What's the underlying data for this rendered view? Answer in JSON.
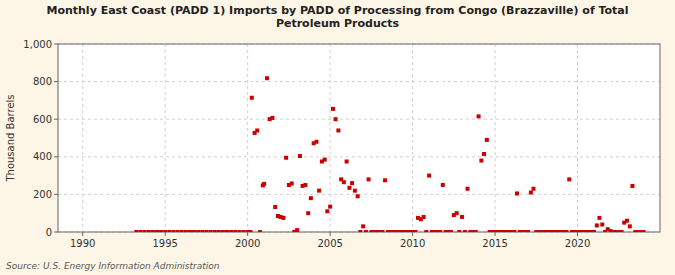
{
  "chart_data": {
    "type": "scatter",
    "title": "Monthly East Coast (PADD 1) Imports by PADD of Processing from Congo (Brazzaville) of Total\nPetroleum Products",
    "ylabel": "Thousand Barrels",
    "source": "Source: U.S. Energy Information Administration",
    "color": "#cc0000",
    "marker": "square",
    "grid": true,
    "xlim": [
      1988.5,
      2025.0
    ],
    "ylim": [
      0,
      1000
    ],
    "xticks": [
      1990,
      1995,
      2000,
      2005,
      2010,
      2015,
      2020
    ],
    "yticks": [
      0,
      200,
      400,
      600,
      800,
      {
        "value": 1000,
        "label": "1,000"
      }
    ],
    "x": [
      1993.25,
      1993.5,
      1993.75,
      1994.0,
      1994.25,
      1994.5,
      1994.75,
      1995.0,
      1995.25,
      1995.5,
      1995.75,
      1996.0,
      1996.25,
      1996.5,
      1996.75,
      1997.0,
      1997.25,
      1997.5,
      1997.75,
      1998.0,
      1998.25,
      1998.5,
      1998.75,
      1999.0,
      1999.25,
      1999.5,
      1999.75,
      2000.0,
      2000.08,
      2000.17,
      2000.25,
      2000.42,
      2000.58,
      2000.75,
      2000.92,
      2001.0,
      2001.17,
      2001.33,
      2001.5,
      2001.67,
      2001.83,
      2002.0,
      2002.17,
      2002.33,
      2002.5,
      2002.67,
      2002.83,
      2003.0,
      2003.17,
      2003.33,
      2003.5,
      2003.67,
      2003.83,
      2004.0,
      2004.17,
      2004.33,
      2004.5,
      2004.67,
      2004.83,
      2005.0,
      2005.17,
      2005.33,
      2005.5,
      2005.67,
      2005.83,
      2006.0,
      2006.17,
      2006.33,
      2006.5,
      2006.67,
      2006.83,
      2007.0,
      2007.17,
      2007.33,
      2007.5,
      2007.67,
      2007.83,
      2008.0,
      2008.17,
      2008.33,
      2008.5,
      2008.67,
      2008.83,
      2009.0,
      2009.17,
      2009.33,
      2009.5,
      2009.67,
      2009.83,
      2010.0,
      2010.17,
      2010.33,
      2010.5,
      2010.67,
      2010.83,
      2011.0,
      2011.17,
      2011.33,
      2011.5,
      2011.67,
      2011.83,
      2012.0,
      2012.17,
      2012.33,
      2012.5,
      2012.67,
      2012.83,
      2013.0,
      2013.17,
      2013.33,
      2013.5,
      2013.67,
      2013.83,
      2014.0,
      2014.17,
      2014.33,
      2014.5,
      2014.67,
      2014.83,
      2015.0,
      2015.17,
      2015.33,
      2015.5,
      2015.67,
      2015.83,
      2016.0,
      2016.17,
      2016.33,
      2016.5,
      2016.67,
      2016.83,
      2017.0,
      2017.17,
      2017.33,
      2017.5,
      2017.67,
      2017.83,
      2018.0,
      2018.17,
      2018.33,
      2018.5,
      2018.67,
      2018.83,
      2019.0,
      2019.17,
      2019.33,
      2019.5,
      2019.67,
      2019.83,
      2020.0,
      2020.17,
      2020.33,
      2020.5,
      2020.67,
      2020.83,
      2021.0,
      2021.17,
      2021.33,
      2021.5,
      2021.67,
      2021.83,
      2022.0,
      2022.17,
      2022.33,
      2022.5,
      2022.67,
      2022.83,
      2023.0,
      2023.17,
      2023.33,
      2023.5,
      2023.67,
      2023.83,
      2024.0
    ],
    "values": [
      0,
      0,
      0,
      0,
      0,
      0,
      0,
      0,
      0,
      0,
      0,
      0,
      0,
      0,
      0,
      0,
      0,
      0,
      0,
      0,
      0,
      0,
      0,
      0,
      0,
      0,
      0,
      0,
      0,
      0,
      714,
      527,
      540,
      0,
      248,
      256,
      818,
      600,
      607,
      133,
      85,
      80,
      75,
      395,
      250,
      258,
      0,
      10,
      404,
      245,
      250,
      100,
      180,
      472,
      480,
      220,
      375,
      385,
      110,
      135,
      655,
      600,
      540,
      280,
      265,
      375,
      235,
      260,
      220,
      190,
      0,
      30,
      0,
      280,
      0,
      0,
      0,
      0,
      0,
      275,
      0,
      0,
      0,
      0,
      0,
      0,
      0,
      0,
      0,
      0,
      0,
      75,
      68,
      80,
      0,
      300,
      0,
      0,
      0,
      0,
      250,
      0,
      0,
      0,
      90,
      100,
      0,
      80,
      0,
      230,
      0,
      0,
      0,
      615,
      380,
      415,
      490,
      0,
      0,
      0,
      0,
      0,
      0,
      0,
      0,
      0,
      0,
      205,
      0,
      0,
      0,
      0,
      210,
      230,
      0,
      0,
      0,
      0,
      0,
      0,
      0,
      0,
      0,
      0,
      0,
      0,
      280,
      0,
      0,
      0,
      0,
      0,
      0,
      0,
      0,
      0,
      35,
      75,
      40,
      0,
      15,
      5,
      0,
      0,
      0,
      0,
      50,
      60,
      30,
      245,
      0,
      0,
      0,
      0
    ]
  }
}
